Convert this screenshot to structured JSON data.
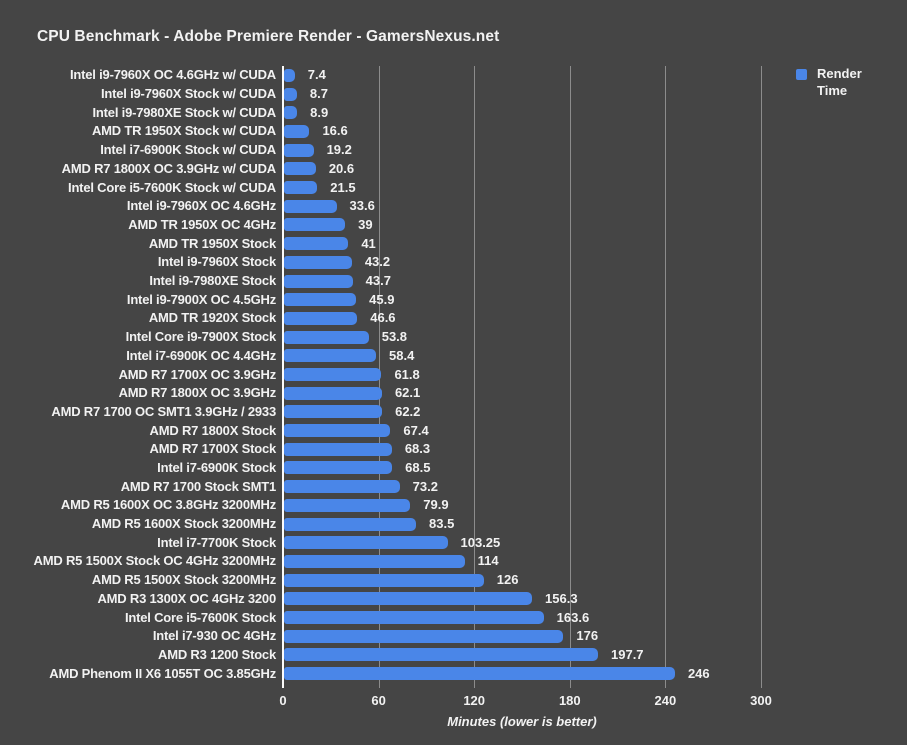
{
  "title": "CPU Benchmark - Adobe Premiere Render - GamersNexus.net",
  "colors": {
    "background": "#454545",
    "bar": "#4a86e8",
    "text": "#f2f2f2",
    "gridline": "#8c8c8c",
    "axis_line": "#fbfbfb"
  },
  "chart_data": {
    "type": "bar",
    "orientation": "horizontal",
    "title": "CPU Benchmark - Adobe Premiere Render - GamersNexus.net",
    "xlabel": "Minutes (lower is better)",
    "ylabel": "",
    "xlim": [
      0,
      300
    ],
    "xticks": [
      0,
      60,
      120,
      180,
      240,
      300
    ],
    "grid": true,
    "legend": {
      "label": "Render Time",
      "position": "top-right"
    },
    "series_name": "Render Time",
    "categories": [
      "Intel i9-7960X OC 4.6GHz w/ CUDA",
      "Intel i9-7960X Stock w/ CUDA",
      "Intel i9-7980XE Stock w/ CUDA",
      "AMD TR 1950X Stock w/ CUDA",
      "Intel i7-6900K Stock w/ CUDA",
      "AMD R7 1800X OC 3.9GHz w/ CUDA",
      "Intel Core i5-7600K Stock w/ CUDA",
      "Intel i9-7960X OC 4.6GHz",
      "AMD TR 1950X OC 4GHz",
      "AMD TR 1950X Stock",
      "Intel i9-7960X Stock",
      "Intel i9-7980XE Stock",
      "Intel i9-7900X OC 4.5GHz",
      "AMD TR 1920X Stock",
      "Intel Core i9-7900X Stock",
      "Intel i7-6900K OC 4.4GHz",
      "AMD R7 1700X OC 3.9GHz",
      "AMD R7 1800X OC 3.9GHz",
      "AMD R7 1700 OC SMT1 3.9GHz / 2933",
      "AMD R7 1800X Stock",
      "AMD R7 1700X Stock",
      "Intel i7-6900K Stock",
      "AMD R7 1700 Stock SMT1",
      "AMD R5 1600X OC 3.8GHz 3200MHz",
      "AMD R5 1600X Stock 3200MHz",
      "Intel i7-7700K Stock",
      "AMD R5 1500X Stock OC 4GHz 3200MHz",
      "AMD R5 1500X Stock 3200MHz",
      "AMD R3 1300X OC 4GHz 3200",
      "Intel Core i5-7600K Stock",
      "Intel i7-930 OC 4GHz",
      "AMD R3 1200 Stock",
      "AMD Phenom II X6 1055T OC 3.85GHz"
    ],
    "values": [
      7.4,
      8.7,
      8.9,
      16.6,
      19.2,
      20.6,
      21.5,
      33.6,
      39,
      41,
      43.2,
      43.7,
      45.9,
      46.6,
      53.8,
      58.4,
      61.8,
      62.1,
      62.2,
      67.4,
      68.3,
      68.5,
      73.2,
      79.9,
      83.5,
      103.25,
      114,
      126,
      156.3,
      163.6,
      176,
      197.7,
      246
    ],
    "value_labels": [
      "7.4",
      "8.7",
      "8.9",
      "16.6",
      "19.2",
      "20.6",
      "21.5",
      "33.6",
      "39",
      "41",
      "43.2",
      "43.7",
      "45.9",
      "46.6",
      "53.8",
      "58.4",
      "61.8",
      "62.1",
      "62.2",
      "67.4",
      "68.3",
      "68.5",
      "73.2",
      "79.9",
      "83.5",
      "103.25",
      "114",
      "126",
      "156.3",
      "163.6",
      "176",
      "197.7",
      "246"
    ]
  }
}
